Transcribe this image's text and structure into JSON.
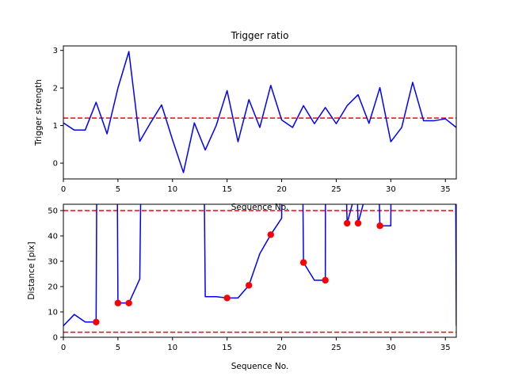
{
  "figure": {
    "background": "#ffffff"
  },
  "chart_data": [
    {
      "type": "line",
      "title": "Trigger ratio",
      "xlabel": "Sequence No.",
      "ylabel": "Trigger strength",
      "xlim": [
        0,
        36
      ],
      "ylim": [
        -0.42,
        3.12
      ],
      "xticks": [
        0,
        5,
        10,
        15,
        20,
        25,
        30,
        35
      ],
      "yticks": [
        0,
        1,
        2,
        3
      ],
      "series": [
        {
          "name": "trigger strength",
          "color": "#0000ff",
          "x": [
            0,
            1,
            2,
            3,
            4,
            5,
            6,
            7,
            8,
            9,
            10,
            11,
            12,
            13,
            14,
            15,
            16,
            17,
            18,
            19,
            20,
            21,
            22,
            23,
            24,
            25,
            26,
            27,
            28,
            29,
            30,
            31,
            32,
            33,
            34,
            35,
            36
          ],
          "y": [
            1.07,
            0.88,
            0.88,
            1.62,
            0.78,
            2.0,
            2.97,
            0.58,
            1.08,
            1.55,
            0.62,
            -0.25,
            1.07,
            0.35,
            1.0,
            1.93,
            0.57,
            1.69,
            0.95,
            2.07,
            1.15,
            0.95,
            1.53,
            1.05,
            1.48,
            1.05,
            1.53,
            1.82,
            1.06,
            2.01,
            0.57,
            0.95,
            2.15,
            1.13,
            1.13,
            1.18,
            0.95
          ]
        }
      ],
      "hlines": [
        {
          "y": 1.2,
          "color": "#ff0000",
          "style": "dashed"
        }
      ]
    },
    {
      "type": "line",
      "title": "",
      "xlabel": "Sequence No.",
      "ylabel": "Distance [pix]",
      "xlim": [
        0,
        36
      ],
      "ylim": [
        0,
        52.5
      ],
      "xticks": [
        0,
        5,
        10,
        15,
        20,
        25,
        30,
        35
      ],
      "yticks": [
        0,
        10,
        20,
        30,
        40,
        50
      ],
      "series": [
        {
          "name": "distance",
          "color": "#0000ff",
          "x": [
            0,
            1,
            2,
            3,
            3.05,
            4.95,
            5,
            6,
            7,
            7.08,
            12.92,
            13,
            14,
            15,
            16,
            17,
            18,
            19,
            20,
            20.01,
            21.95,
            22,
            23,
            24,
            24.01,
            25.95,
            26,
            26.5,
            26.95,
            27,
            27.5,
            28.95,
            29,
            29.5,
            30,
            30.01,
            35.95,
            36
          ],
          "y": [
            4.5,
            9,
            6,
            6,
            53,
            53,
            13.5,
            13.5,
            23,
            53,
            53,
            16,
            16,
            15.5,
            15.5,
            20.5,
            33,
            40.5,
            47,
            53,
            53,
            29.5,
            22.5,
            22.5,
            53,
            53,
            45,
            53,
            53,
            45,
            53,
            53,
            44,
            44,
            44,
            53,
            53,
            4.5
          ]
        }
      ],
      "markers": {
        "color": "#ff0000",
        "x": [
          3,
          5,
          6,
          15,
          17,
          19,
          22,
          24,
          26,
          27,
          29
        ],
        "y": [
          6,
          13.5,
          13.5,
          15.5,
          20.5,
          40.5,
          29.5,
          22.5,
          45,
          45,
          44
        ]
      },
      "hlines": [
        {
          "y": 50,
          "color": "#ff0000",
          "style": "dashed"
        },
        {
          "y": 2,
          "color": "#ff0000",
          "style": "dashed"
        }
      ]
    }
  ]
}
